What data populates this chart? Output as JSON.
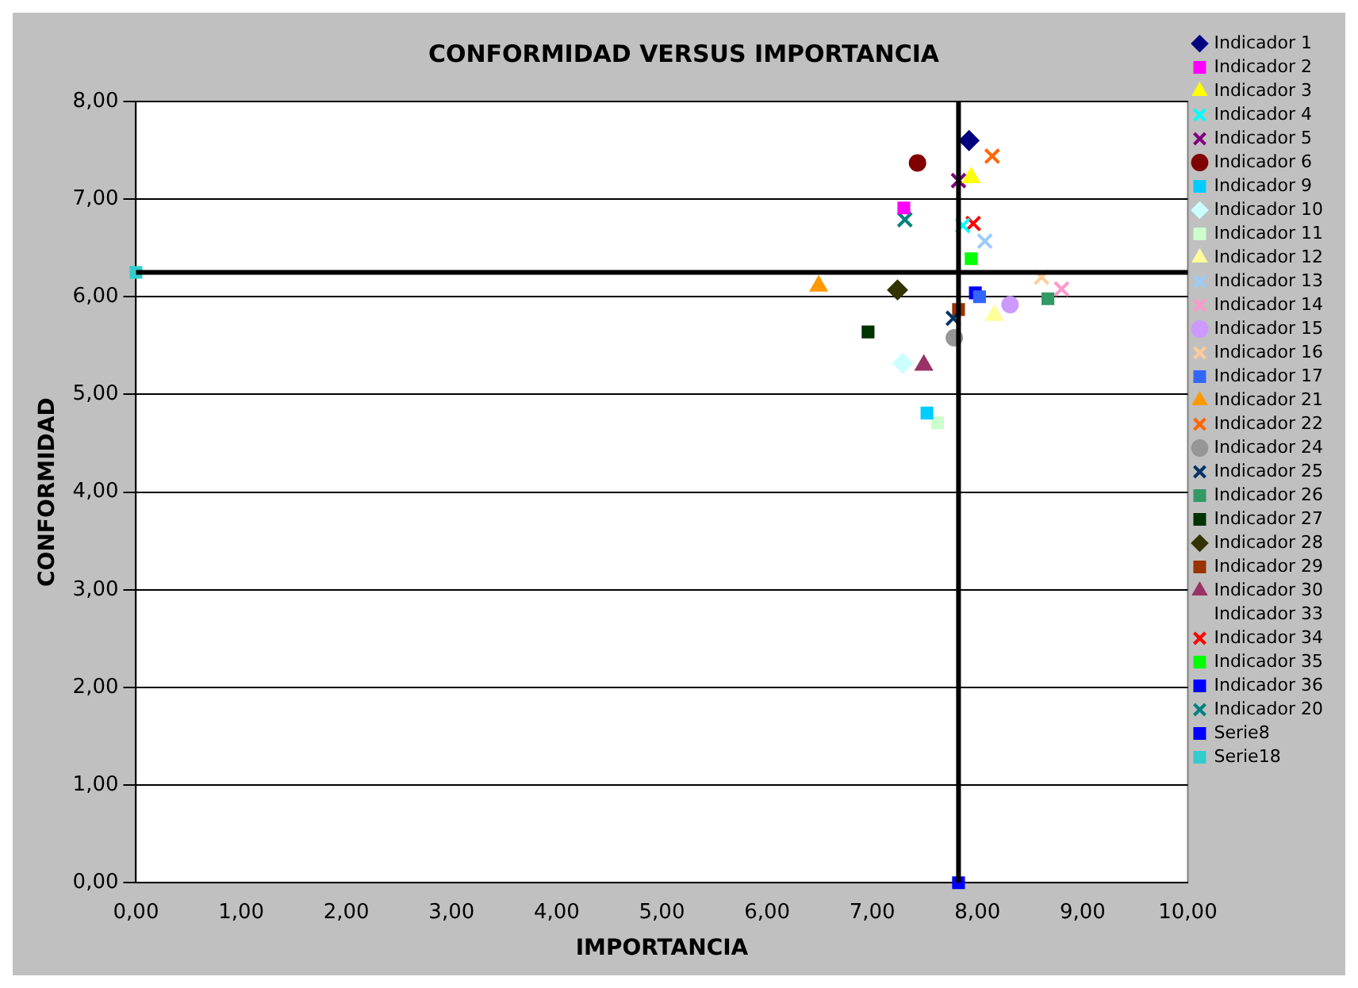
{
  "chart_data": {
    "type": "scatter",
    "title": "CONFORMIDAD VERSUS IMPORTANCIA",
    "xlabel": "IMPORTANCIA",
    "ylabel": "CONFORMIDAD",
    "xlim": [
      0,
      10
    ],
    "ylim": [
      0,
      8
    ],
    "xticks": [
      {
        "value": 0,
        "label": "0,00"
      },
      {
        "value": 1,
        "label": "1,00"
      },
      {
        "value": 2,
        "label": "2,00"
      },
      {
        "value": 3,
        "label": "3,00"
      },
      {
        "value": 4,
        "label": "4,00"
      },
      {
        "value": 5,
        "label": "5,00"
      },
      {
        "value": 6,
        "label": "6,00"
      },
      {
        "value": 7,
        "label": "7,00"
      },
      {
        "value": 8,
        "label": "8,00"
      },
      {
        "value": 9,
        "label": "9,00"
      },
      {
        "value": 10,
        "label": "10,00"
      }
    ],
    "yticks": [
      {
        "value": 0,
        "label": "0,00"
      },
      {
        "value": 1,
        "label": "1,00"
      },
      {
        "value": 2,
        "label": "2,00"
      },
      {
        "value": 3,
        "label": "3,00"
      },
      {
        "value": 4,
        "label": "4,00"
      },
      {
        "value": 5,
        "label": "5,00"
      },
      {
        "value": 6,
        "label": "6,00"
      },
      {
        "value": 7,
        "label": "7,00"
      },
      {
        "value": 8,
        "label": "8,00"
      }
    ],
    "grid": "y",
    "legend": "right",
    "ref_lines": [
      {
        "axis": "x",
        "value": 7.82,
        "color": "#000000"
      },
      {
        "axis": "y",
        "value": 6.25,
        "color": "#000000"
      }
    ],
    "series": [
      {
        "name": "Indicador 1",
        "color": "#000080",
        "marker": "diamond",
        "x": [
          7.92
        ],
        "values": [
          7.6
        ]
      },
      {
        "name": "Indicador 2",
        "color": "#ff00ff",
        "marker": "square",
        "x": [
          7.3
        ],
        "values": [
          6.91
        ]
      },
      {
        "name": "Indicador 3",
        "color": "#ffff00",
        "marker": "triangle",
        "x": [
          7.94
        ],
        "values": [
          7.22
        ]
      },
      {
        "name": "Indicador 4",
        "color": "#00ffff",
        "marker": "cross",
        "x": [
          7.86
        ],
        "values": [
          6.73
        ]
      },
      {
        "name": "Indicador 5",
        "color": "#800080",
        "marker": "cross",
        "x": [
          7.82
        ],
        "values": [
          7.19
        ]
      },
      {
        "name": "Indicador 6",
        "color": "#800000",
        "marker": "circle",
        "x": [
          7.43
        ],
        "values": [
          7.37
        ]
      },
      {
        "name": "Indicador 9",
        "color": "#00ccff",
        "marker": "square",
        "x": [
          7.52
        ],
        "values": [
          4.81
        ]
      },
      {
        "name": "Indicador 10",
        "color": "#ccffff",
        "marker": "diamond",
        "x": [
          7.29
        ],
        "values": [
          5.32
        ]
      },
      {
        "name": "Indicador 11",
        "color": "#ccffcc",
        "marker": "square",
        "x": [
          7.62
        ],
        "values": [
          4.71
        ]
      },
      {
        "name": "Indicador 12",
        "color": "#ffff99",
        "marker": "triangle",
        "x": [
          8.16
        ],
        "values": [
          5.81
        ]
      },
      {
        "name": "Indicador 13",
        "color": "#99ccff",
        "marker": "cross",
        "x": [
          8.07
        ],
        "values": [
          6.57
        ]
      },
      {
        "name": "Indicador 14",
        "color": "#ff99cc",
        "marker": "cross",
        "x": [
          8.8
        ],
        "values": [
          6.08
        ]
      },
      {
        "name": "Indicador 15",
        "color": "#cc99ff",
        "marker": "circle",
        "x": [
          8.31
        ],
        "values": [
          5.92
        ]
      },
      {
        "name": "Indicador 16",
        "color": "#ffcc99",
        "marker": "cross",
        "x": [
          8.61
        ],
        "values": [
          6.2
        ]
      },
      {
        "name": "Indicador 17",
        "color": "#3366ff",
        "marker": "square",
        "x": [
          8.02
        ],
        "values": [
          6.0
        ]
      },
      {
        "name": "Indicador 21",
        "color": "#ff9900",
        "marker": "triangle",
        "x": [
          6.49
        ],
        "values": [
          6.11
        ]
      },
      {
        "name": "Indicador 22",
        "color": "#ff6600",
        "marker": "cross",
        "x": [
          8.14
        ],
        "values": [
          7.44
        ]
      },
      {
        "name": "Indicador 24",
        "color": "#969696",
        "marker": "circle",
        "x": [
          7.78
        ],
        "values": [
          5.58
        ]
      },
      {
        "name": "Indicador 25",
        "color": "#003366",
        "marker": "cross",
        "x": [
          7.77
        ],
        "values": [
          5.78
        ]
      },
      {
        "name": "Indicador 26",
        "color": "#339966",
        "marker": "square",
        "x": [
          8.67
        ],
        "values": [
          5.98
        ]
      },
      {
        "name": "Indicador 27",
        "color": "#003300",
        "marker": "square",
        "x": [
          6.96
        ],
        "values": [
          5.64
        ]
      },
      {
        "name": "Indicador 28",
        "color": "#333300",
        "marker": "diamond",
        "x": [
          7.24
        ],
        "values": [
          6.07
        ]
      },
      {
        "name": "Indicador 29",
        "color": "#993300",
        "marker": "square",
        "x": [
          7.82
        ],
        "values": [
          5.87
        ]
      },
      {
        "name": "Indicador 30",
        "color": "#993366",
        "marker": "triangle",
        "x": [
          7.49
        ],
        "values": [
          5.3
        ]
      },
      {
        "name": "Indicador 33",
        "marker": "none",
        "x": [
          null
        ],
        "values": [
          null
        ]
      },
      {
        "name": "Indicador 34",
        "color": "#ff0000",
        "marker": "cross",
        "x": [
          7.96
        ],
        "values": [
          6.75
        ]
      },
      {
        "name": "Indicador 35",
        "color": "#00ff00",
        "marker": "square",
        "x": [
          7.94
        ],
        "values": [
          6.39
        ]
      },
      {
        "name": "Indicador 36",
        "color": "#0000ff",
        "marker": "square",
        "x": [
          7.98
        ],
        "values": [
          6.04
        ]
      },
      {
        "name": "Indicador 20",
        "color": "#008080",
        "marker": "cross",
        "x": [
          7.31
        ],
        "values": [
          6.79
        ]
      },
      {
        "name": "Serie8",
        "color": "#0000ff",
        "marker": "square",
        "x": [
          7.82
        ],
        "values": [
          0
        ]
      },
      {
        "name": "Serie18",
        "color": "#33cccc",
        "marker": "square",
        "x": [
          0
        ],
        "values": [
          6.25
        ]
      }
    ]
  }
}
